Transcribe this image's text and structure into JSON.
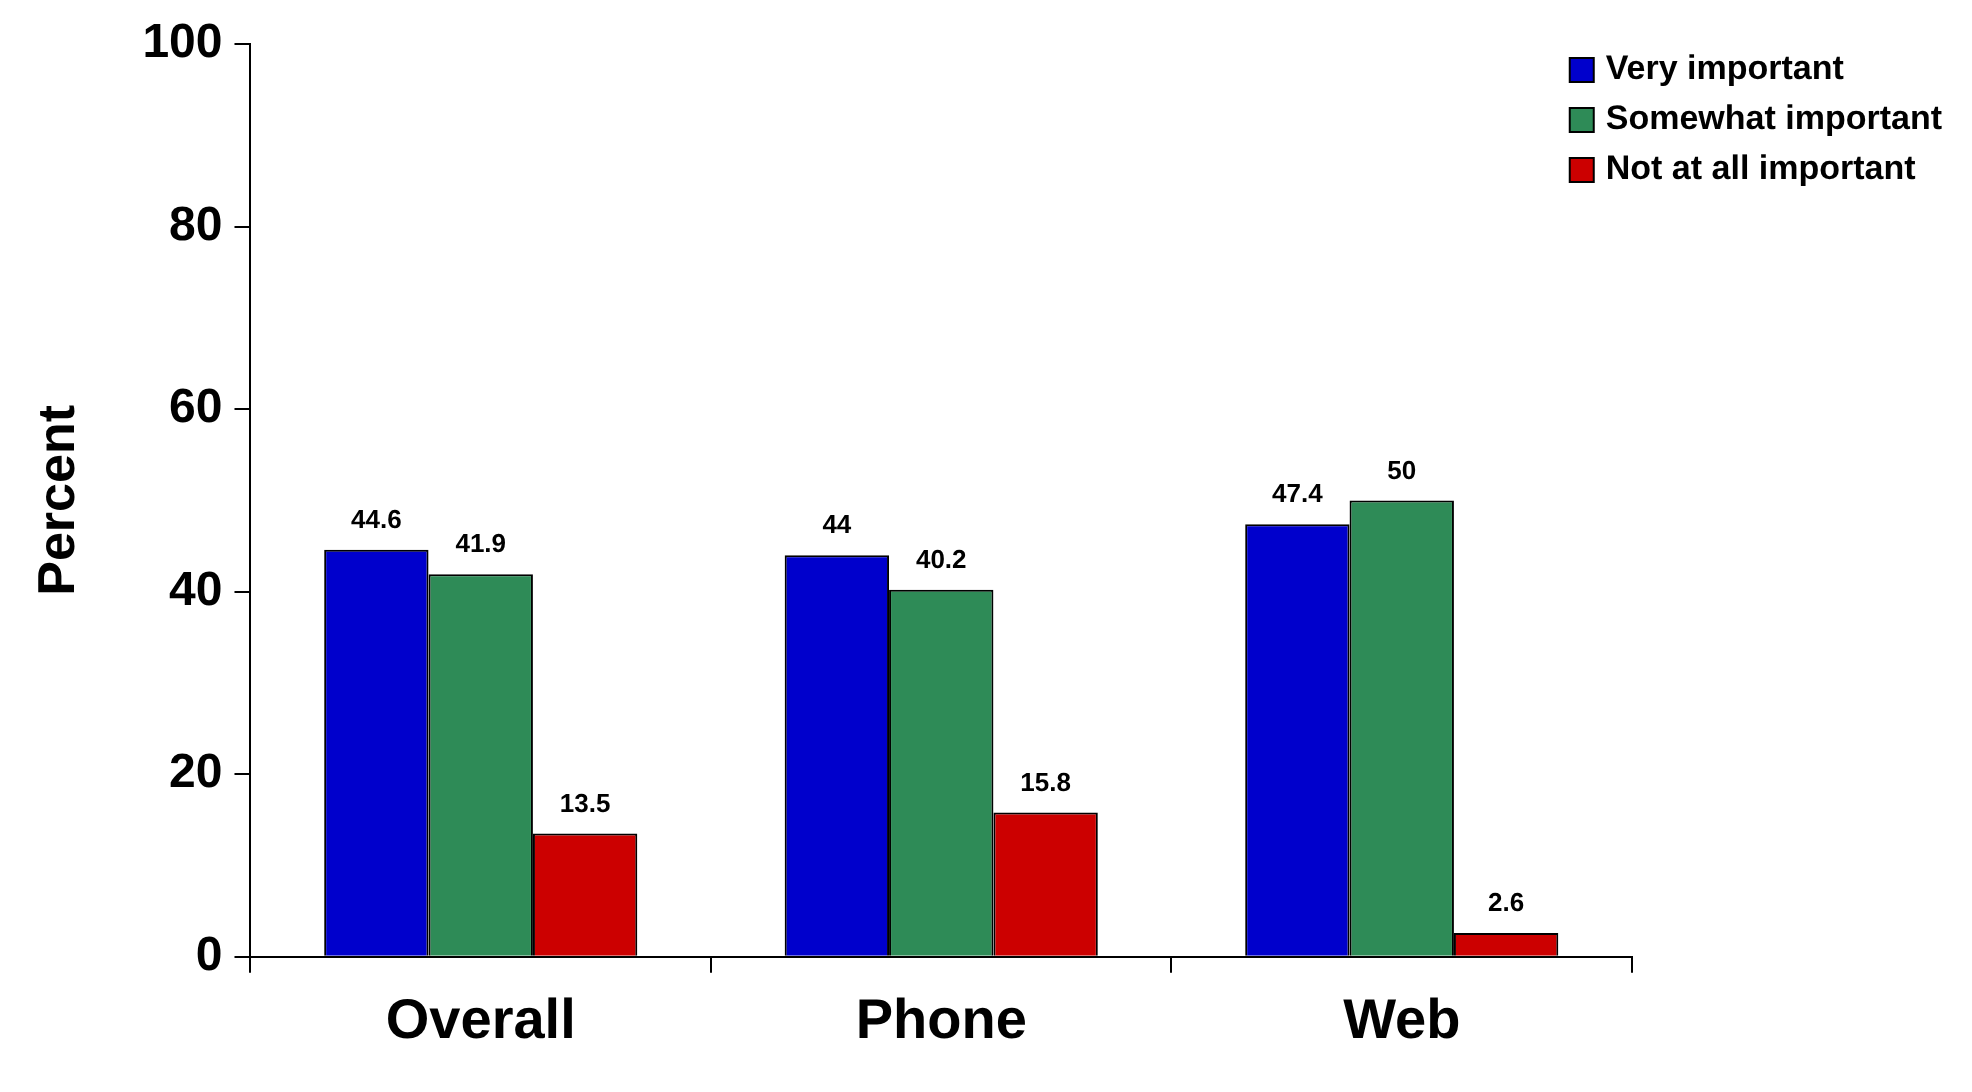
{
  "chart_data": {
    "type": "bar",
    "ylabel": "Percent",
    "categories": [
      "Overall",
      "Phone",
      "Web"
    ],
    "series": [
      {
        "name": "Very important",
        "color": "#0000cc",
        "values": [
          44.6,
          44,
          47.4
        ]
      },
      {
        "name": "Somewhat important",
        "color": "#2e8b57",
        "values": [
          41.9,
          40.2,
          50
        ]
      },
      {
        "name": "Not at all important",
        "color": "#cc0000",
        "values": [
          13.5,
          15.8,
          2.6
        ]
      }
    ],
    "ylim": [
      0,
      100
    ],
    "yticks": [
      0,
      20,
      40,
      60,
      80,
      100
    ],
    "grid": false,
    "legend": "top right",
    "data_labels": true
  }
}
